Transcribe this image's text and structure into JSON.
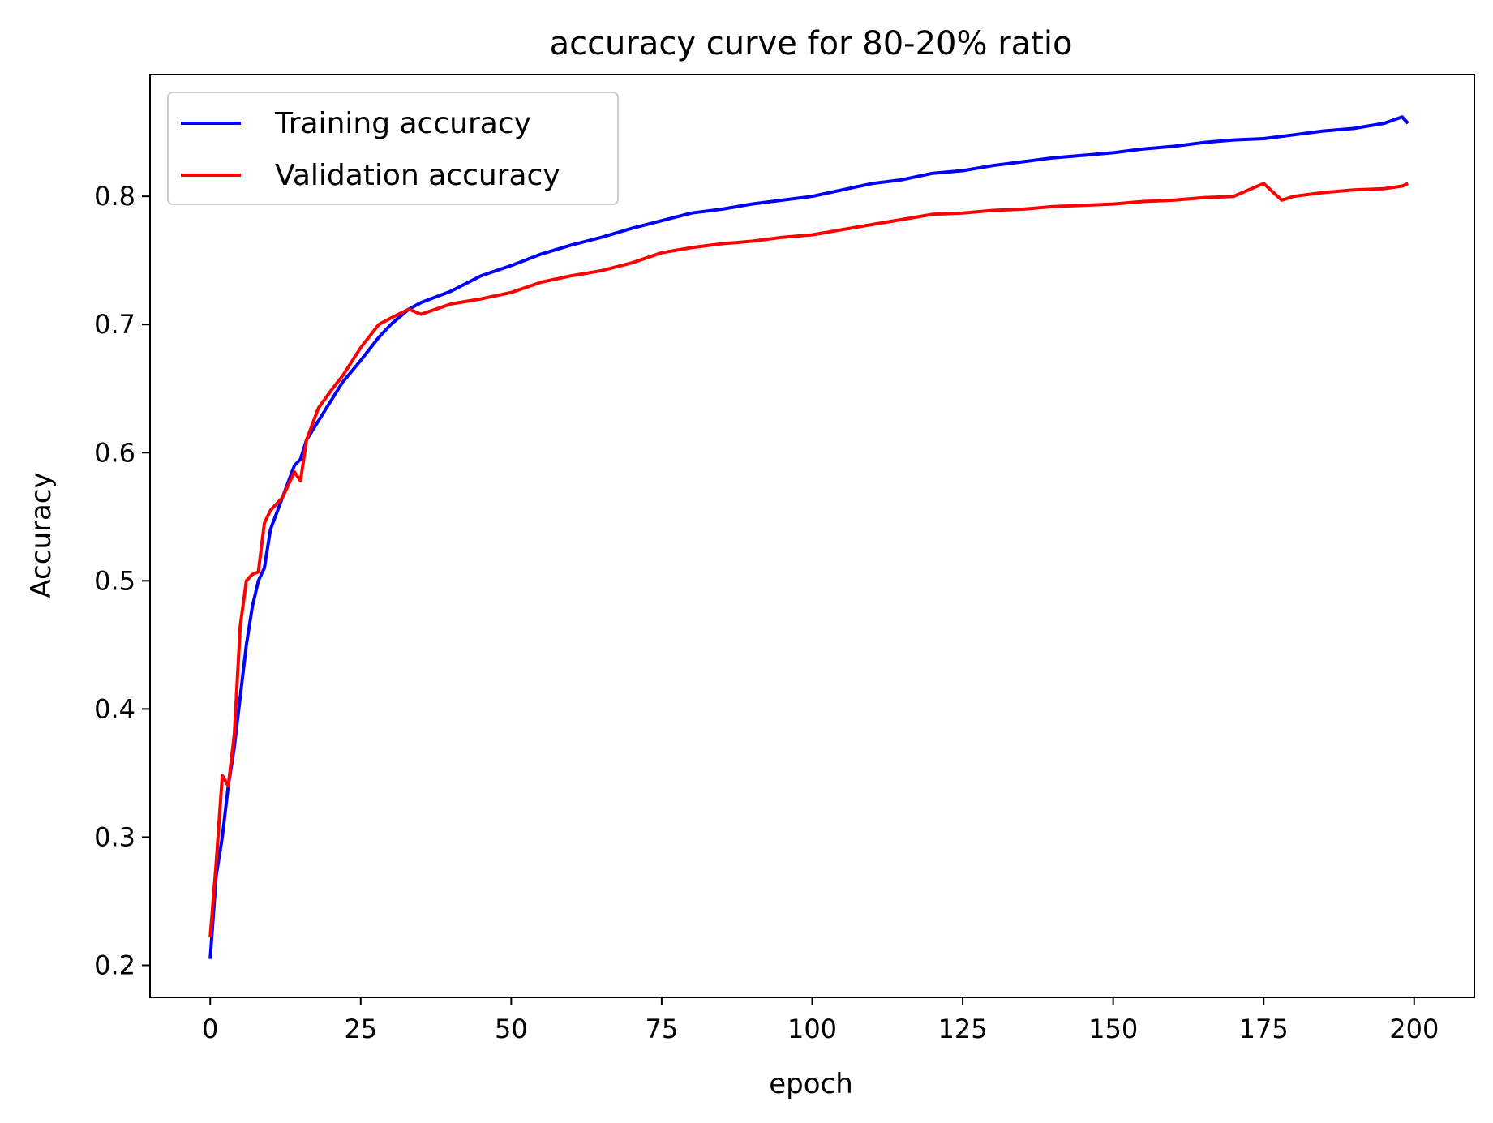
{
  "chart_data": {
    "type": "line",
    "title": "accuracy curve for 80-20% ratio",
    "xlabel": "epoch",
    "ylabel": "Accuracy",
    "xlim": [
      -10,
      210
    ],
    "ylim": [
      0.175,
      0.895
    ],
    "xticks": [
      0,
      25,
      50,
      75,
      100,
      125,
      150,
      175,
      200
    ],
    "yticks": [
      0.2,
      0.3,
      0.4,
      0.5,
      0.6,
      0.7,
      0.8
    ],
    "xtick_labels": [
      "0",
      "25",
      "50",
      "75",
      "100",
      "125",
      "150",
      "175",
      "200"
    ],
    "ytick_labels": [
      "0.2",
      "0.3",
      "0.4",
      "0.5",
      "0.6",
      "0.7",
      "0.8"
    ],
    "grid": false,
    "legend_position": "upper-left",
    "series": [
      {
        "name": "Training accuracy",
        "color": "#0000ff",
        "x": [
          0,
          1,
          2,
          3,
          4,
          5,
          6,
          7,
          8,
          9,
          10,
          12,
          14,
          15,
          16,
          18,
          20,
          22,
          25,
          28,
          30,
          33,
          35,
          40,
          45,
          50,
          55,
          60,
          65,
          70,
          75,
          80,
          85,
          90,
          95,
          100,
          105,
          110,
          115,
          120,
          125,
          130,
          135,
          140,
          145,
          150,
          155,
          160,
          165,
          170,
          175,
          180,
          185,
          190,
          195,
          198,
          199
        ],
        "y": [
          0.205,
          0.27,
          0.3,
          0.34,
          0.37,
          0.41,
          0.45,
          0.48,
          0.5,
          0.51,
          0.54,
          0.565,
          0.59,
          0.595,
          0.61,
          0.625,
          0.64,
          0.655,
          0.672,
          0.69,
          0.7,
          0.712,
          0.717,
          0.726,
          0.738,
          0.746,
          0.755,
          0.762,
          0.768,
          0.775,
          0.781,
          0.787,
          0.79,
          0.794,
          0.797,
          0.8,
          0.805,
          0.81,
          0.813,
          0.818,
          0.82,
          0.824,
          0.827,
          0.83,
          0.832,
          0.834,
          0.837,
          0.839,
          0.842,
          0.844,
          0.845,
          0.848,
          0.851,
          0.853,
          0.857,
          0.862,
          0.857
        ]
      },
      {
        "name": "Validation accuracy",
        "color": "#ff0000",
        "x": [
          0,
          1,
          2,
          3,
          4,
          5,
          6,
          7,
          8,
          9,
          10,
          12,
          14,
          15,
          16,
          18,
          20,
          22,
          25,
          28,
          30,
          33,
          35,
          40,
          45,
          50,
          55,
          60,
          65,
          70,
          75,
          80,
          85,
          90,
          95,
          100,
          105,
          110,
          115,
          120,
          125,
          130,
          135,
          140,
          145,
          150,
          155,
          160,
          165,
          170,
          175,
          178,
          180,
          185,
          190,
          195,
          198,
          199
        ],
        "y": [
          0.222,
          0.28,
          0.348,
          0.34,
          0.38,
          0.465,
          0.5,
          0.505,
          0.507,
          0.545,
          0.555,
          0.565,
          0.585,
          0.578,
          0.61,
          0.635,
          0.648,
          0.66,
          0.682,
          0.7,
          0.705,
          0.712,
          0.708,
          0.716,
          0.72,
          0.725,
          0.733,
          0.738,
          0.742,
          0.748,
          0.756,
          0.76,
          0.763,
          0.765,
          0.768,
          0.77,
          0.774,
          0.778,
          0.782,
          0.786,
          0.787,
          0.789,
          0.79,
          0.792,
          0.793,
          0.794,
          0.796,
          0.797,
          0.799,
          0.8,
          0.81,
          0.797,
          0.8,
          0.803,
          0.805,
          0.806,
          0.808,
          0.81
        ]
      }
    ]
  }
}
